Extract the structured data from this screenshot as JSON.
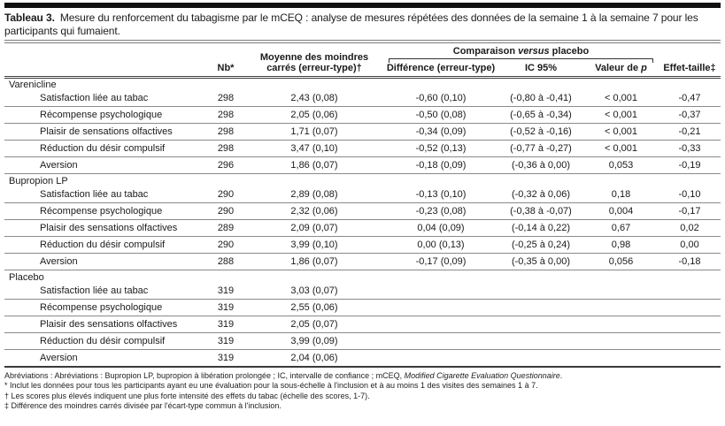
{
  "title": {
    "label": "Tableau 3.",
    "text": "Mesure du renforcement du tabagisme par le mCEQ : analyse de mesures répétées des données de la semaine 1 à la semaine 7 pour les participants qui fumaient."
  },
  "table": {
    "col_headers": {
      "nb": "Nb*",
      "mean": "Moyenne des moindres carrés (erreur-type)†",
      "comparison_pre": "Comparaison ",
      "comparison_italic": "versus",
      "comparison_post": " placebo",
      "difference": "Différence (erreur-type)",
      "ci": "IC 95%",
      "pvalue_pre": "Valeur de ",
      "pvalue_italic": "p",
      "effect": "Effet-taille‡"
    },
    "sections": [
      {
        "name": "Varenicline",
        "rows": [
          {
            "label": "Satisfaction liée au tabac",
            "nb": "298",
            "mean": "2,43 (0,08)",
            "diff": "-0,60 (0,10)",
            "ci": "(-0,80 à -0,41)",
            "p": "< 0,001",
            "effect": "-0,47"
          },
          {
            "label": "Récompense psychologique",
            "nb": "298",
            "mean": "2,05 (0,06)",
            "diff": "-0,50 (0,08)",
            "ci": "(-0,65 à -0,34)",
            "p": "< 0,001",
            "effect": "-0,37"
          },
          {
            "label": "Plaisir de sensations olfactives",
            "nb": "298",
            "mean": "1,71 (0,07)",
            "diff": "-0,34 (0,09)",
            "ci": "(-0,52 à -0,16)",
            "p": "< 0,001",
            "effect": "-0,21"
          },
          {
            "label": "Réduction du désir compulsif",
            "nb": "298",
            "mean": "3,47 (0,10)",
            "diff": "-0,52 (0,13)",
            "ci": "(-0,77 à -0,27)",
            "p": "< 0,001",
            "effect": "-0,33"
          },
          {
            "label": "Aversion",
            "nb": "296",
            "mean": "1,86 (0,07)",
            "diff": "-0,18 (0,09)",
            "ci": "(-0,36 à 0,00)",
            "p": "0,053",
            "effect": "-0,19"
          }
        ]
      },
      {
        "name": "Bupropion LP",
        "rows": [
          {
            "label": "Satisfaction liée au tabac",
            "nb": "290",
            "mean": "2,89 (0,08)",
            "diff": "-0,13 (0,10)",
            "ci": "(-0,32 à 0,06)",
            "p": "0,18",
            "effect": "-0,10"
          },
          {
            "label": "Récompense psychologique",
            "nb": "290",
            "mean": "2,32 (0,06)",
            "diff": "-0,23 (0,08)",
            "ci": "(-0,38 à -0,07)",
            "p": "0,004",
            "effect": "-0,17"
          },
          {
            "label": "Plaisir des sensations olfactives",
            "nb": "289",
            "mean": "2,09 (0,07)",
            "diff": "0,04 (0,09)",
            "ci": "(-0,14 à 0,22)",
            "p": "0,67",
            "effect": "0,02"
          },
          {
            "label": "Réduction du désir compulsif",
            "nb": "290",
            "mean": "3,99 (0,10)",
            "diff": "0,00 (0,13)",
            "ci": "(-0,25 à 0,24)",
            "p": "0,98",
            "effect": "0,00"
          },
          {
            "label": "Aversion",
            "nb": "288",
            "mean": "1,86 (0,07)",
            "diff": "-0,17 (0,09)",
            "ci": "(-0,35 à 0,00)",
            "p": "0,056",
            "effect": "-0,18"
          }
        ]
      },
      {
        "name": "Placebo",
        "rows": [
          {
            "label": "Satisfaction liée au tabac",
            "nb": "319",
            "mean": "3,03 (0,07)",
            "diff": "",
            "ci": "",
            "p": "",
            "effect": ""
          },
          {
            "label": "Récompense psychologique",
            "nb": "319",
            "mean": "2,55 (0,06)",
            "diff": "",
            "ci": "",
            "p": "",
            "effect": ""
          },
          {
            "label": "Plaisir des sensations olfactives",
            "nb": "319",
            "mean": "2,05 (0,07)",
            "diff": "",
            "ci": "",
            "p": "",
            "effect": ""
          },
          {
            "label": "Réduction du désir compulsif",
            "nb": "319",
            "mean": "3,99 (0,09)",
            "diff": "",
            "ci": "",
            "p": "",
            "effect": ""
          },
          {
            "label": "Aversion",
            "nb": "319",
            "mean": "2,04 (0,06)",
            "diff": "",
            "ci": "",
            "p": "",
            "effect": ""
          }
        ]
      }
    ]
  },
  "footnotes": {
    "abbrev_pre": "Abréviations : Abréviations : Bupropion LP, bupropion à libération prolongée ; IC, intervalle de confiance ; mCEQ, ",
    "abbrev_italic": "Modified Cigarette Evaluation Questionnaire",
    "abbrev_post": ".",
    "star": "* Inclut les données pour tous les participants ayant eu une évaluation pour la sous-échelle à l'inclusion et à au moins 1 des visites des semaines 1 à 7.",
    "dagger": "† Les scores plus élevés indiquent une plus forte intensité des effets du tabac (échelle des scores, 1-7).",
    "ddagger": "‡ Différence des moindres carrés divisée par l'écart-type commun à l'inclusion."
  }
}
